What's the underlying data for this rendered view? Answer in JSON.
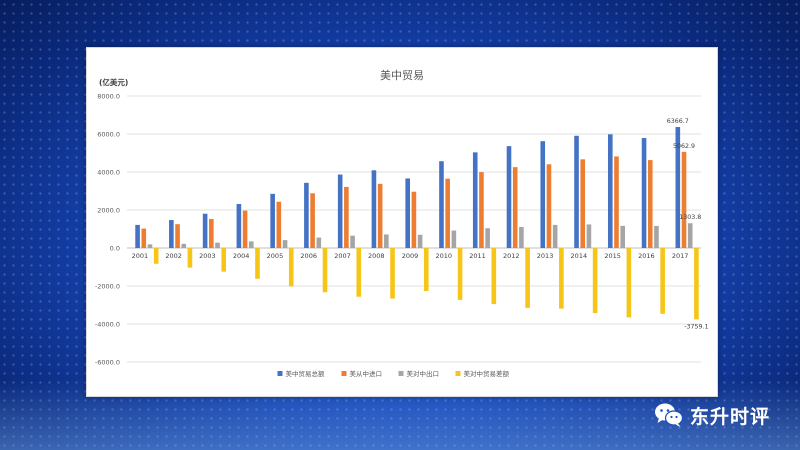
{
  "chart_data": {
    "type": "bar",
    "title": "美中贸易",
    "unit_label": "(亿美元)",
    "categories": [
      "2001",
      "2002",
      "2003",
      "2004",
      "2005",
      "2006",
      "2007",
      "2008",
      "2009",
      "2010",
      "2011",
      "2012",
      "2013",
      "2014",
      "2015",
      "2016",
      "2017"
    ],
    "series": [
      {
        "name": "美中贸易总额",
        "color": "#4472c4",
        "values": [
          1215,
          1470,
          1805,
          2315,
          2850,
          3430,
          3865,
          4090,
          3660,
          4567,
          5034,
          5362,
          5621,
          5907,
          5983,
          5787,
          6366.7
        ]
      },
      {
        "name": "美从中进口",
        "color": "#ed7d31",
        "values": [
          1023,
          1252,
          1525,
          1967,
          2435,
          2880,
          3215,
          3376,
          2963,
          3649,
          3993,
          4256,
          4405,
          4667,
          4818,
          4626,
          5062.9
        ]
      },
      {
        "name": "美对中出口",
        "color": "#a5a5a5",
        "values": [
          192,
          218,
          280,
          348,
          415,
          550,
          650,
          714,
          697,
          918,
          1041,
          1106,
          1216,
          1240,
          1165,
          1161,
          1303.8
        ]
      },
      {
        "name": "美对中贸易差额",
        "color": "#f5c518",
        "values": [
          -831,
          -1034,
          -1245,
          -1619,
          -2020,
          -2330,
          -2565,
          -2662,
          -2266,
          -2731,
          -2952,
          -3150,
          -3189,
          -3427,
          -3653,
          -3465,
          -3759.1
        ]
      }
    ],
    "data_labels": [
      {
        "series": 0,
        "index": 16,
        "text": "6366.7"
      },
      {
        "series": 1,
        "index": 16,
        "text": "5062.9"
      },
      {
        "series": 2,
        "index": 16,
        "text": "1303.8"
      },
      {
        "series": 3,
        "index": 16,
        "text": "-3759.1"
      }
    ],
    "ylim": [
      -6000,
      8000
    ],
    "yticks": [
      8000,
      6000,
      4000,
      2000,
      0,
      -2000,
      -4000,
      -6000
    ],
    "ytick_labels": [
      "8000.0",
      "6000.0",
      "4000.0",
      "2000.0",
      "0.0",
      "-2000.0",
      "-4000.0",
      "-6000.0"
    ],
    "grid": true,
    "legend_position": "bottom"
  },
  "watermark": {
    "text": "东升时评",
    "icon": "wechat-icon"
  }
}
